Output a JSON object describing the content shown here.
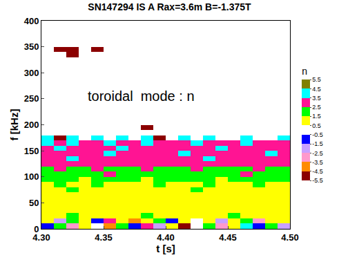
{
  "chart_data": {
    "type": "heatmap",
    "title": "SN147294 IS A Rax=3.6m B=-1.375T",
    "x_label": "t [s]",
    "y_label": "f [kHz]",
    "colorbar_title": "n",
    "annotations": [
      {
        "text": "toroidal  mode : n",
        "x": 4.38,
        "y": 255
      }
    ],
    "xlim": [
      4.3,
      4.5
    ],
    "ylim": [
      0,
      400
    ],
    "xticks": [
      {
        "value": 4.3,
        "label": "4.30"
      },
      {
        "value": 4.35,
        "label": "4.35"
      },
      {
        "value": 4.4,
        "label": "4.40"
      },
      {
        "value": 4.45,
        "label": "4.45"
      },
      {
        "value": 4.5,
        "label": "4.50"
      }
    ],
    "yticks": [
      0,
      50,
      100,
      150,
      200,
      250,
      300,
      350,
      400
    ],
    "zlim": [
      -5.5,
      5.5
    ],
    "zticks": [
      5.5,
      4.5,
      3.5,
      2.5,
      1.5,
      0.5,
      -0.5,
      -1.5,
      -2.5,
      -3.5,
      -4.5,
      -5.5
    ],
    "x": [
      4.305,
      4.315,
      4.325,
      4.335,
      4.345,
      4.355,
      4.365,
      4.375,
      4.385,
      4.395,
      4.405,
      4.415,
      4.425,
      4.435,
      4.445,
      4.455,
      4.465,
      4.475,
      4.485,
      4.495
    ],
    "y": [
      5,
      15,
      25,
      35,
      45,
      55,
      65,
      75,
      85,
      95,
      105,
      115,
      125,
      135,
      145,
      155,
      165,
      175,
      185,
      195,
      205,
      215,
      225,
      235,
      245,
      255,
      265,
      275,
      285,
      295,
      305,
      315,
      325,
      335,
      345,
      355,
      365,
      375,
      385,
      395
    ],
    "z": [
      [
        -1,
        2,
        -3,
        1,
        0,
        -4,
        2,
        -1,
        3,
        -2,
        1,
        -5,
        0,
        2,
        -3,
        1,
        4,
        -1,
        2,
        -2
      ],
      [
        1,
        -2,
        2,
        1,
        -1,
        3,
        1,
        -4,
        1,
        2,
        -1,
        1,
        0,
        1,
        -2,
        1,
        2,
        -3,
        1,
        1
      ],
      [
        1,
        1,
        2,
        1,
        1,
        1,
        1,
        1,
        2,
        1,
        1,
        1,
        1,
        1,
        1,
        2,
        1,
        1,
        1,
        1
      ],
      [
        1,
        1,
        1,
        1,
        1,
        1,
        1,
        1,
        1,
        1,
        1,
        1,
        1,
        1,
        1,
        1,
        1,
        1,
        1,
        1
      ],
      [
        1,
        1,
        1,
        1,
        1,
        1,
        1,
        1,
        1,
        1,
        1,
        1,
        1,
        1,
        1,
        1,
        1,
        1,
        1,
        1
      ],
      [
        1,
        1,
        1,
        1,
        1,
        1,
        1,
        1,
        1,
        1,
        1,
        1,
        1,
        1,
        1,
        1,
        1,
        1,
        1,
        1
      ],
      [
        1,
        1,
        1,
        1,
        1,
        1,
        1,
        1,
        1,
        1,
        1,
        1,
        1,
        1,
        1,
        1,
        1,
        1,
        1,
        1
      ],
      [
        1,
        1,
        2,
        1,
        1,
        1,
        1,
        1,
        1,
        1,
        1,
        1,
        2,
        1,
        1,
        1,
        1,
        1,
        1,
        1
      ],
      [
        1,
        2,
        1,
        1,
        2,
        1,
        1,
        1,
        1,
        2,
        1,
        1,
        1,
        2,
        1,
        1,
        1,
        2,
        1,
        1
      ],
      [
        2,
        2,
        2,
        1,
        2,
        2,
        2,
        2,
        1,
        2,
        2,
        2,
        2,
        2,
        1,
        2,
        2,
        2,
        2,
        2
      ],
      [
        2,
        2,
        2,
        2,
        2,
        3,
        2,
        2,
        2,
        2,
        2,
        2,
        2,
        2,
        2,
        2,
        3,
        2,
        2,
        2
      ],
      [
        2,
        3,
        2,
        2,
        3,
        2,
        2,
        2,
        3,
        2,
        2,
        2,
        3,
        2,
        2,
        2,
        2,
        3,
        2,
        2
      ],
      [
        3,
        3,
        3,
        3,
        3,
        3,
        3,
        3,
        3,
        3,
        3,
        3,
        3,
        3,
        3,
        3,
        3,
        3,
        3,
        3
      ],
      [
        3,
        3,
        4,
        3,
        3,
        3,
        3,
        3,
        3,
        3,
        3,
        3,
        3,
        4,
        3,
        3,
        3,
        3,
        3,
        3
      ],
      [
        3,
        3,
        3,
        3,
        3,
        4,
        3,
        3,
        3,
        3,
        3,
        4,
        3,
        3,
        3,
        3,
        3,
        3,
        4,
        3
      ],
      [
        3,
        4,
        3,
        3,
        3,
        3,
        4,
        3,
        3,
        3,
        3,
        3,
        3,
        3,
        4,
        3,
        3,
        3,
        3,
        3
      ],
      [
        4,
        3,
        4,
        3,
        3,
        4,
        3,
        3,
        4,
        3,
        3,
        3,
        4,
        3,
        3,
        3,
        4,
        3,
        3,
        3
      ],
      [
        4,
        -5,
        4,
        null,
        4,
        null,
        4,
        null,
        4,
        -5,
        null,
        4,
        null,
        4,
        null,
        null,
        4,
        null,
        null,
        4
      ],
      [
        null,
        null,
        null,
        null,
        null,
        null,
        null,
        null,
        null,
        null,
        null,
        null,
        null,
        null,
        null,
        null,
        null,
        null,
        null,
        null
      ],
      [
        null,
        null,
        null,
        null,
        null,
        null,
        null,
        null,
        -5,
        null,
        null,
        null,
        null,
        null,
        null,
        null,
        null,
        null,
        null,
        null
      ],
      [
        null,
        null,
        null,
        null,
        null,
        null,
        null,
        null,
        null,
        null,
        null,
        null,
        null,
        null,
        null,
        null,
        null,
        null,
        null,
        null
      ],
      [
        null,
        null,
        null,
        null,
        null,
        null,
        null,
        null,
        null,
        null,
        null,
        null,
        null,
        null,
        null,
        null,
        null,
        null,
        null,
        null
      ],
      [
        null,
        null,
        null,
        null,
        null,
        null,
        null,
        null,
        null,
        null,
        null,
        null,
        null,
        null,
        null,
        null,
        null,
        null,
        null,
        null
      ],
      [
        null,
        null,
        null,
        null,
        null,
        null,
        null,
        null,
        null,
        null,
        null,
        null,
        null,
        null,
        null,
        null,
        null,
        null,
        null,
        null
      ],
      [
        null,
        null,
        null,
        null,
        null,
        null,
        null,
        null,
        null,
        null,
        null,
        null,
        null,
        null,
        null,
        null,
        null,
        null,
        null,
        null
      ],
      [
        null,
        null,
        null,
        null,
        null,
        null,
        null,
        null,
        null,
        null,
        null,
        null,
        null,
        null,
        null,
        null,
        null,
        null,
        null,
        null
      ],
      [
        null,
        null,
        null,
        null,
        null,
        null,
        null,
        null,
        null,
        null,
        null,
        null,
        null,
        null,
        null,
        null,
        null,
        null,
        null,
        null
      ],
      [
        null,
        null,
        null,
        null,
        null,
        null,
        null,
        null,
        null,
        null,
        null,
        null,
        null,
        null,
        null,
        null,
        null,
        null,
        null,
        null
      ],
      [
        null,
        null,
        null,
        null,
        null,
        null,
        null,
        null,
        null,
        null,
        null,
        null,
        null,
        null,
        null,
        null,
        null,
        null,
        null,
        null
      ],
      [
        null,
        null,
        null,
        null,
        null,
        null,
        null,
        null,
        null,
        null,
        null,
        null,
        null,
        null,
        null,
        null,
        null,
        null,
        null,
        null
      ],
      [
        null,
        null,
        null,
        null,
        null,
        null,
        null,
        null,
        null,
        null,
        null,
        null,
        null,
        null,
        null,
        null,
        null,
        null,
        null,
        null
      ],
      [
        null,
        null,
        null,
        null,
        null,
        null,
        null,
        null,
        null,
        null,
        null,
        null,
        null,
        null,
        null,
        null,
        null,
        null,
        null,
        null
      ],
      [
        null,
        null,
        null,
        null,
        null,
        null,
        null,
        null,
        null,
        null,
        null,
        null,
        null,
        null,
        null,
        null,
        null,
        null,
        null,
        null
      ],
      [
        null,
        null,
        -5,
        null,
        null,
        null,
        null,
        null,
        null,
        null,
        null,
        null,
        null,
        null,
        null,
        null,
        null,
        null,
        null,
        null
      ],
      [
        null,
        -5,
        -5,
        null,
        -5,
        null,
        null,
        null,
        null,
        null,
        null,
        null,
        null,
        null,
        null,
        null,
        null,
        null,
        null,
        null
      ],
      [
        null,
        null,
        null,
        null,
        null,
        null,
        null,
        null,
        null,
        null,
        null,
        null,
        null,
        null,
        null,
        null,
        null,
        null,
        null,
        null
      ],
      [
        null,
        null,
        null,
        null,
        null,
        null,
        null,
        null,
        null,
        null,
        null,
        null,
        null,
        null,
        null,
        null,
        null,
        null,
        null,
        null
      ],
      [
        null,
        null,
        null,
        null,
        null,
        null,
        null,
        null,
        null,
        null,
        null,
        null,
        null,
        null,
        null,
        null,
        null,
        null,
        null,
        null
      ],
      [
        null,
        null,
        null,
        null,
        null,
        null,
        null,
        null,
        null,
        null,
        null,
        null,
        null,
        null,
        null,
        null,
        null,
        null,
        null,
        null
      ],
      [
        null,
        null,
        null,
        null,
        null,
        null,
        null,
        null,
        null,
        null,
        null,
        null,
        null,
        null,
        null,
        null,
        null,
        null,
        null,
        null
      ]
    ]
  }
}
